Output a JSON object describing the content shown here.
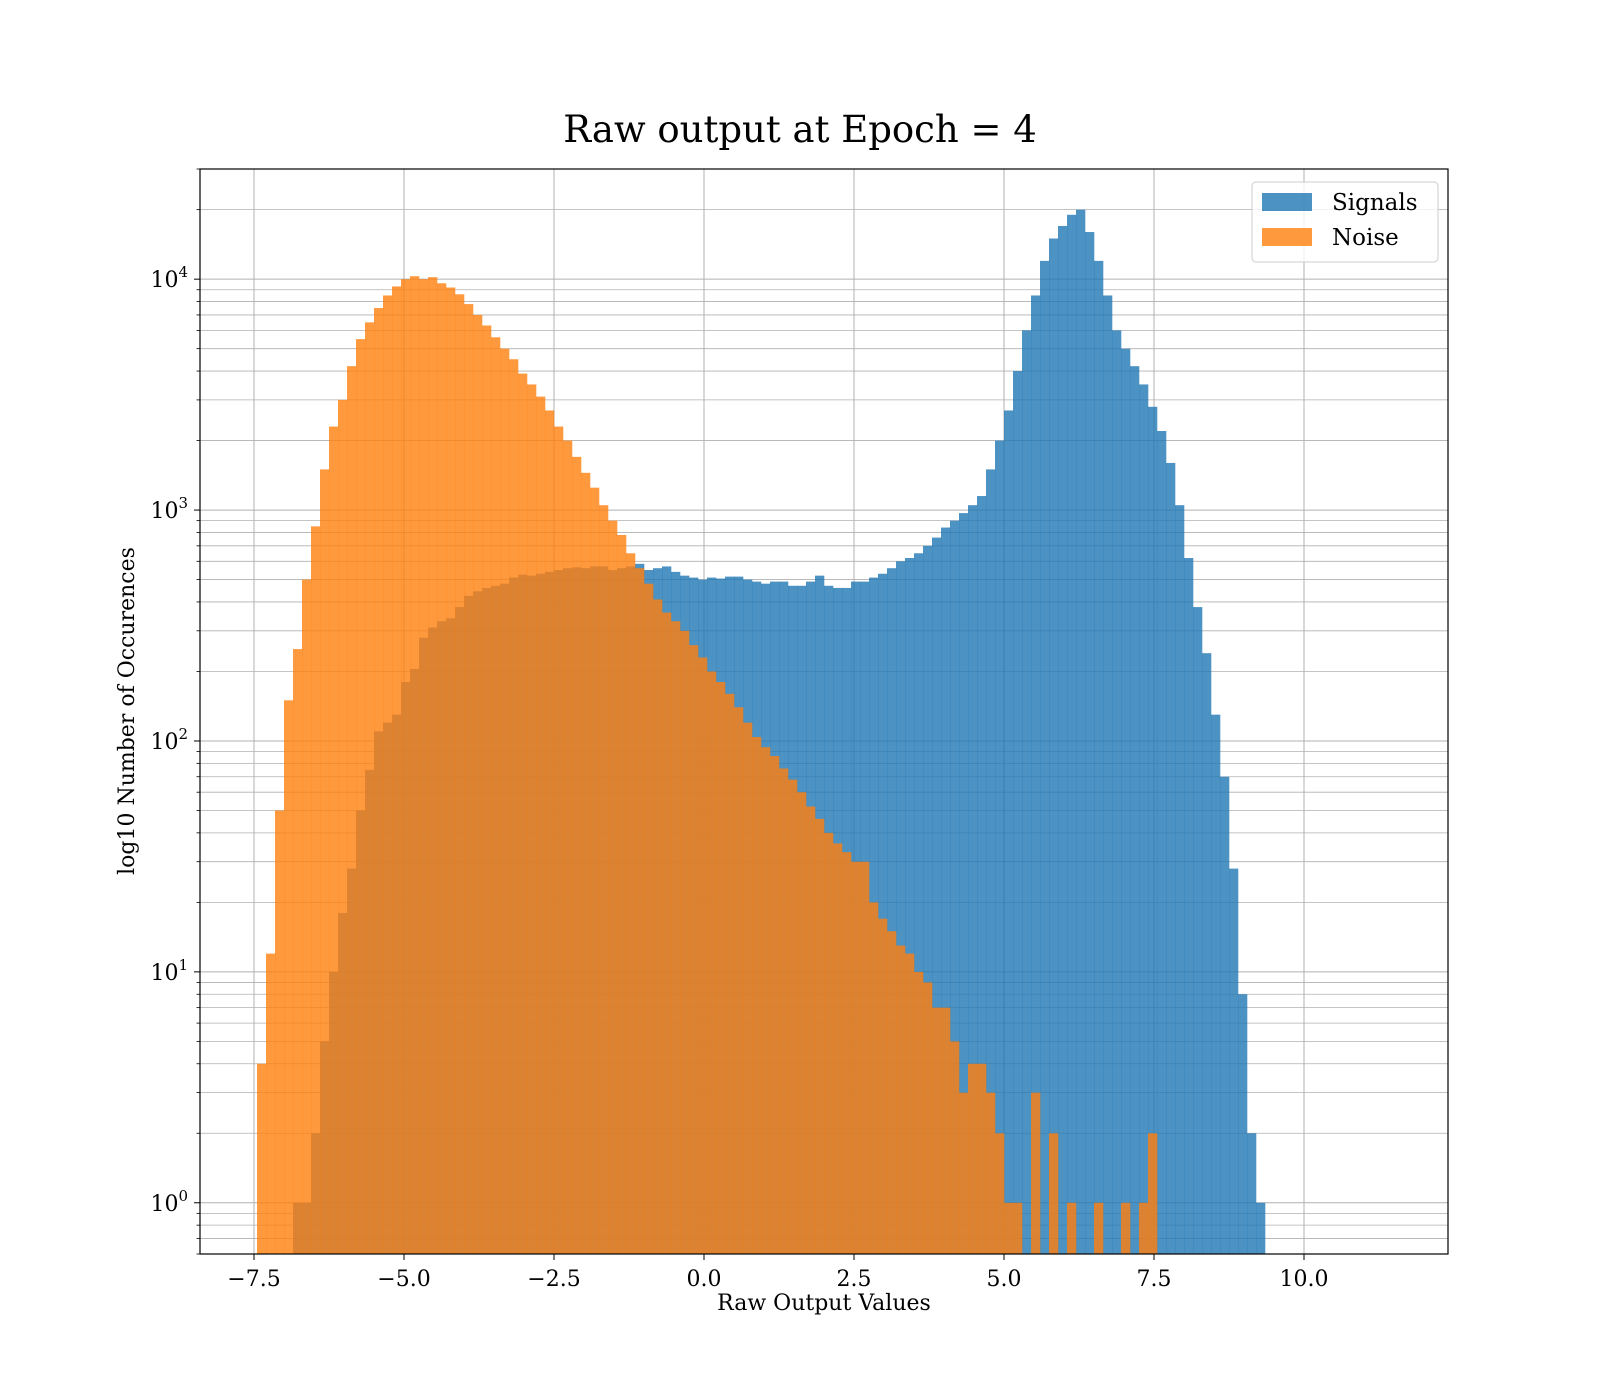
{
  "chart_data": {
    "type": "histogram",
    "title": "Raw output at Epoch = 4",
    "xlabel": "Raw Output Values",
    "ylabel": "log10 Number of Occurences",
    "xlim": [
      -8.4,
      12.4
    ],
    "ylim": [
      0.6,
      30000
    ],
    "yscale": "log",
    "grid": true,
    "legend_position": "top-right",
    "bin_width": 0.15,
    "x_ticks": [
      {
        "value": -7.5,
        "label": "−7.5"
      },
      {
        "value": -5.0,
        "label": "−5.0"
      },
      {
        "value": -2.5,
        "label": "−2.5"
      },
      {
        "value": 0.0,
        "label": "0.0"
      },
      {
        "value": 2.5,
        "label": "2.5"
      },
      {
        "value": 5.0,
        "label": "5.0"
      },
      {
        "value": 7.5,
        "label": "7.5"
      },
      {
        "value": 10.0,
        "label": "10.0"
      }
    ],
    "y_ticks": [
      {
        "value": 1,
        "exponent": "0"
      },
      {
        "value": 10,
        "exponent": "1"
      },
      {
        "value": 100,
        "exponent": "2"
      },
      {
        "value": 1000,
        "exponent": "3"
      },
      {
        "value": 10000,
        "exponent": "4"
      }
    ],
    "series": [
      {
        "name": "Signals",
        "color": "#1f77b4",
        "opacity": 0.8,
        "start": -6.85,
        "counts": [
          1,
          1,
          2,
          5,
          10,
          18,
          28,
          50,
          75,
          110,
          120,
          130,
          180,
          205,
          280,
          310,
          330,
          340,
          380,
          425,
          445,
          460,
          470,
          480,
          510,
          525,
          520,
          530,
          540,
          550,
          560,
          565,
          560,
          570,
          570,
          550,
          560,
          570,
          585,
          550,
          560,
          570,
          540,
          520,
          510,
          500,
          510,
          505,
          515,
          515,
          500,
          490,
          480,
          490,
          490,
          470,
          470,
          490,
          520,
          470,
          460,
          460,
          490,
          490,
          510,
          530,
          560,
          600,
          620,
          650,
          700,
          760,
          840,
          900,
          970,
          1050,
          1150,
          1500,
          2000,
          2700,
          4000,
          6000,
          8500,
          12000,
          15000,
          17000,
          19000,
          20000,
          16000,
          12000,
          8500,
          6000,
          5000,
          4200,
          3500,
          2800,
          2200,
          1600,
          1050,
          620,
          380,
          240,
          130,
          70,
          28,
          8,
          2,
          1
        ],
        "bin_edges": null
      },
      {
        "name": "Noise",
        "color": "#ff7f0e",
        "opacity": 0.8,
        "start": -7.45,
        "counts": [
          4,
          12,
          50,
          150,
          250,
          500,
          850,
          1500,
          2300,
          3000,
          4200,
          5500,
          6500,
          7500,
          8500,
          9300,
          10000,
          10300,
          10000,
          10200,
          9600,
          9200,
          8600,
          7800,
          7000,
          6300,
          5600,
          5000,
          4500,
          3900,
          3500,
          3100,
          2700,
          2300,
          2000,
          1700,
          1450,
          1250,
          1050,
          900,
          780,
          650,
          560,
          480,
          410,
          360,
          330,
          300,
          260,
          230,
          200,
          180,
          160,
          140,
          120,
          104,
          94,
          86,
          76,
          68,
          60,
          52,
          46,
          40,
          36,
          33,
          30,
          30,
          20,
          17,
          15,
          13,
          12,
          10,
          9,
          7,
          7,
          5,
          3,
          4,
          4,
          3,
          2,
          1,
          1,
          0,
          3,
          0,
          2,
          0,
          1,
          0,
          0,
          1,
          0,
          0,
          1,
          0,
          1,
          2
        ]
      }
    ]
  }
}
